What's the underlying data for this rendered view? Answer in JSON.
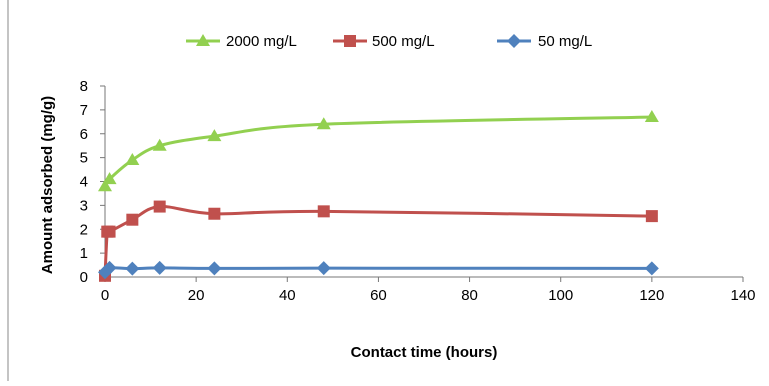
{
  "chart_data": {
    "type": "line",
    "xlabel": "Contact time (hours)",
    "ylabel": "Amount adsorbed (mg/g)",
    "xlim": [
      0,
      140
    ],
    "ylim": [
      0,
      8
    ],
    "x_ticks": [
      0,
      20,
      40,
      60,
      80,
      100,
      120,
      140
    ],
    "y_ticks": [
      0,
      1,
      2,
      3,
      4,
      5,
      6,
      7,
      8
    ],
    "grid": false,
    "legend_position": "top",
    "series": [
      {
        "name": "2000 mg/L",
        "color": "#92D050",
        "marker": "triangle",
        "x": [
          0,
          1,
          6,
          12,
          24,
          48,
          120
        ],
        "y": [
          3.8,
          4.1,
          4.9,
          5.5,
          5.9,
          6.4,
          6.7
        ]
      },
      {
        "name": "500 mg/L",
        "color": "#C0504D",
        "marker": "square",
        "x": [
          0,
          0.5,
          1,
          6,
          12,
          24,
          48,
          120
        ],
        "y": [
          0.05,
          1.9,
          1.9,
          2.4,
          2.95,
          2.65,
          2.75,
          2.55
        ]
      },
      {
        "name": "50 mg/L",
        "color": "#4F81BD",
        "marker": "diamond",
        "x": [
          0,
          1,
          6,
          12,
          24,
          48,
          120
        ],
        "y": [
          0.2,
          0.38,
          0.35,
          0.38,
          0.36,
          0.37,
          0.36
        ]
      }
    ]
  }
}
